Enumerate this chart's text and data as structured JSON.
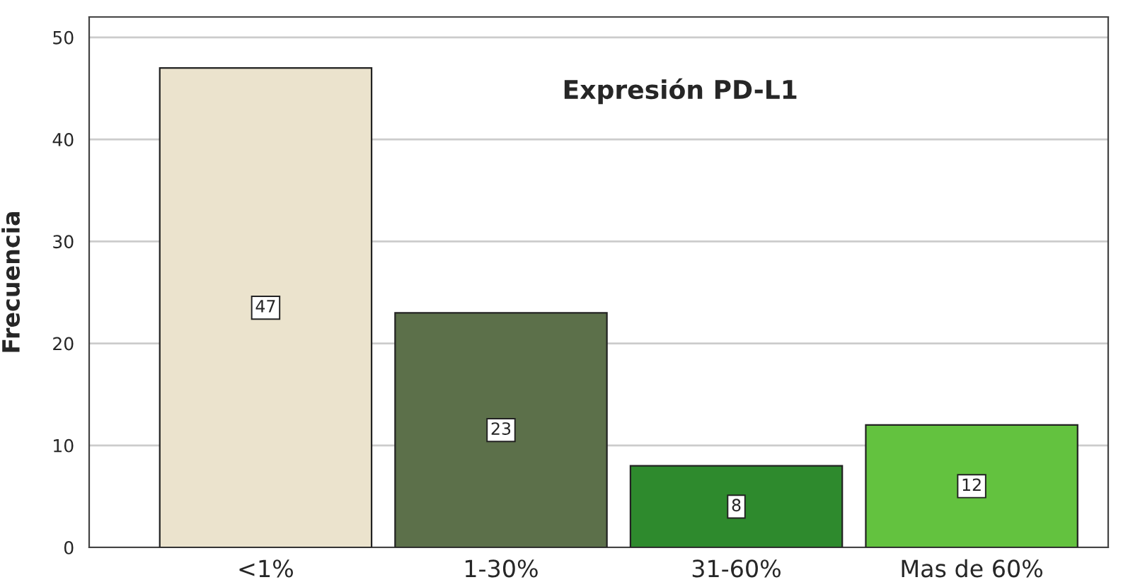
{
  "chart_data": {
    "type": "bar",
    "title": "Expresión PD-L1",
    "ylabel": "Frecuencia",
    "categories": [
      "<1%",
      "1-30%",
      "31-60%",
      "Mas de 60%"
    ],
    "values": [
      47,
      23,
      8,
      12
    ],
    "colors": [
      "#ebe3cd",
      "#5c704a",
      "#2e8a2d",
      "#63c23f"
    ],
    "ylim": [
      0,
      52
    ],
    "yticks": [
      0,
      10,
      20,
      30,
      40,
      50
    ],
    "grid": "y",
    "data_labels": true
  }
}
